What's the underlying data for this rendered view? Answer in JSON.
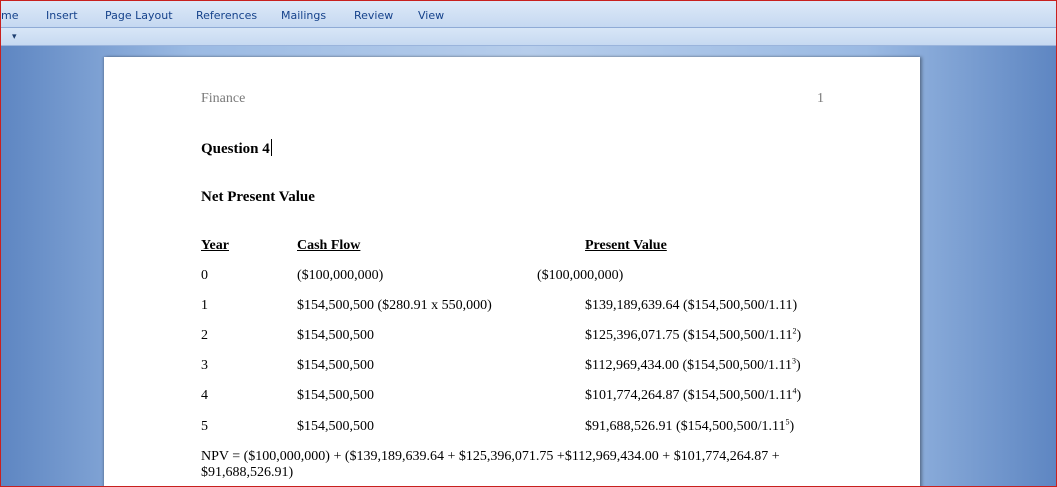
{
  "ribbon": {
    "tabs": [
      "me",
      "Insert",
      "Page Layout",
      "References",
      "Mailings",
      "Review",
      "View"
    ]
  },
  "qat": {
    "arrow": "▾"
  },
  "document": {
    "header_left": "Finance",
    "header_right": "1",
    "question_title": "Question 4",
    "section_title": "Net Present Value",
    "table": {
      "headers": {
        "year": "Year",
        "cash_flow": "Cash Flow",
        "present_value": "Present Value"
      },
      "rows": [
        {
          "year": "0",
          "cash_flow": "($100,000,000)",
          "pv": "($100,000,000)",
          "pv_formula": "",
          "pv_formula_end": "",
          "exponent": ""
        },
        {
          "year": "1",
          "cash_flow": "$154,500,500 ($280.91 x 550,000)",
          "pv": "$139,189,639.64",
          "pv_formula": "($154,500,500/1.11)",
          "pv_formula_end": "",
          "exponent": ""
        },
        {
          "year": "2",
          "cash_flow": "$154,500,500",
          "pv": "$125,396,071.75",
          "pv_formula": "($154,500,500/1.11",
          "pv_formula_end": ")",
          "exponent": "2"
        },
        {
          "year": "3",
          "cash_flow": "$154,500,500",
          "pv": "$112,969,434.00",
          "pv_formula": "($154,500,500/1.11",
          "pv_formula_end": ")",
          "exponent": "3"
        },
        {
          "year": "4",
          "cash_flow": "$154,500,500",
          "pv": "$101,774,264.87",
          "pv_formula": "($154,500,500/1.11",
          "pv_formula_end": ")",
          "exponent": "4"
        },
        {
          "year": "5",
          "cash_flow": "$154,500,500",
          "pv": "$91,688,526.91",
          "pv_formula": "($154,500,500/1.11",
          "pv_formula_end": ")",
          "exponent": "5"
        }
      ]
    },
    "npv_equation": "NPV = ($100,000,000) + ($139,189,639.64 + $125,396,071.75 +$112,969,434.00 + $101,774,264.87 + $91,688,526.91)"
  }
}
